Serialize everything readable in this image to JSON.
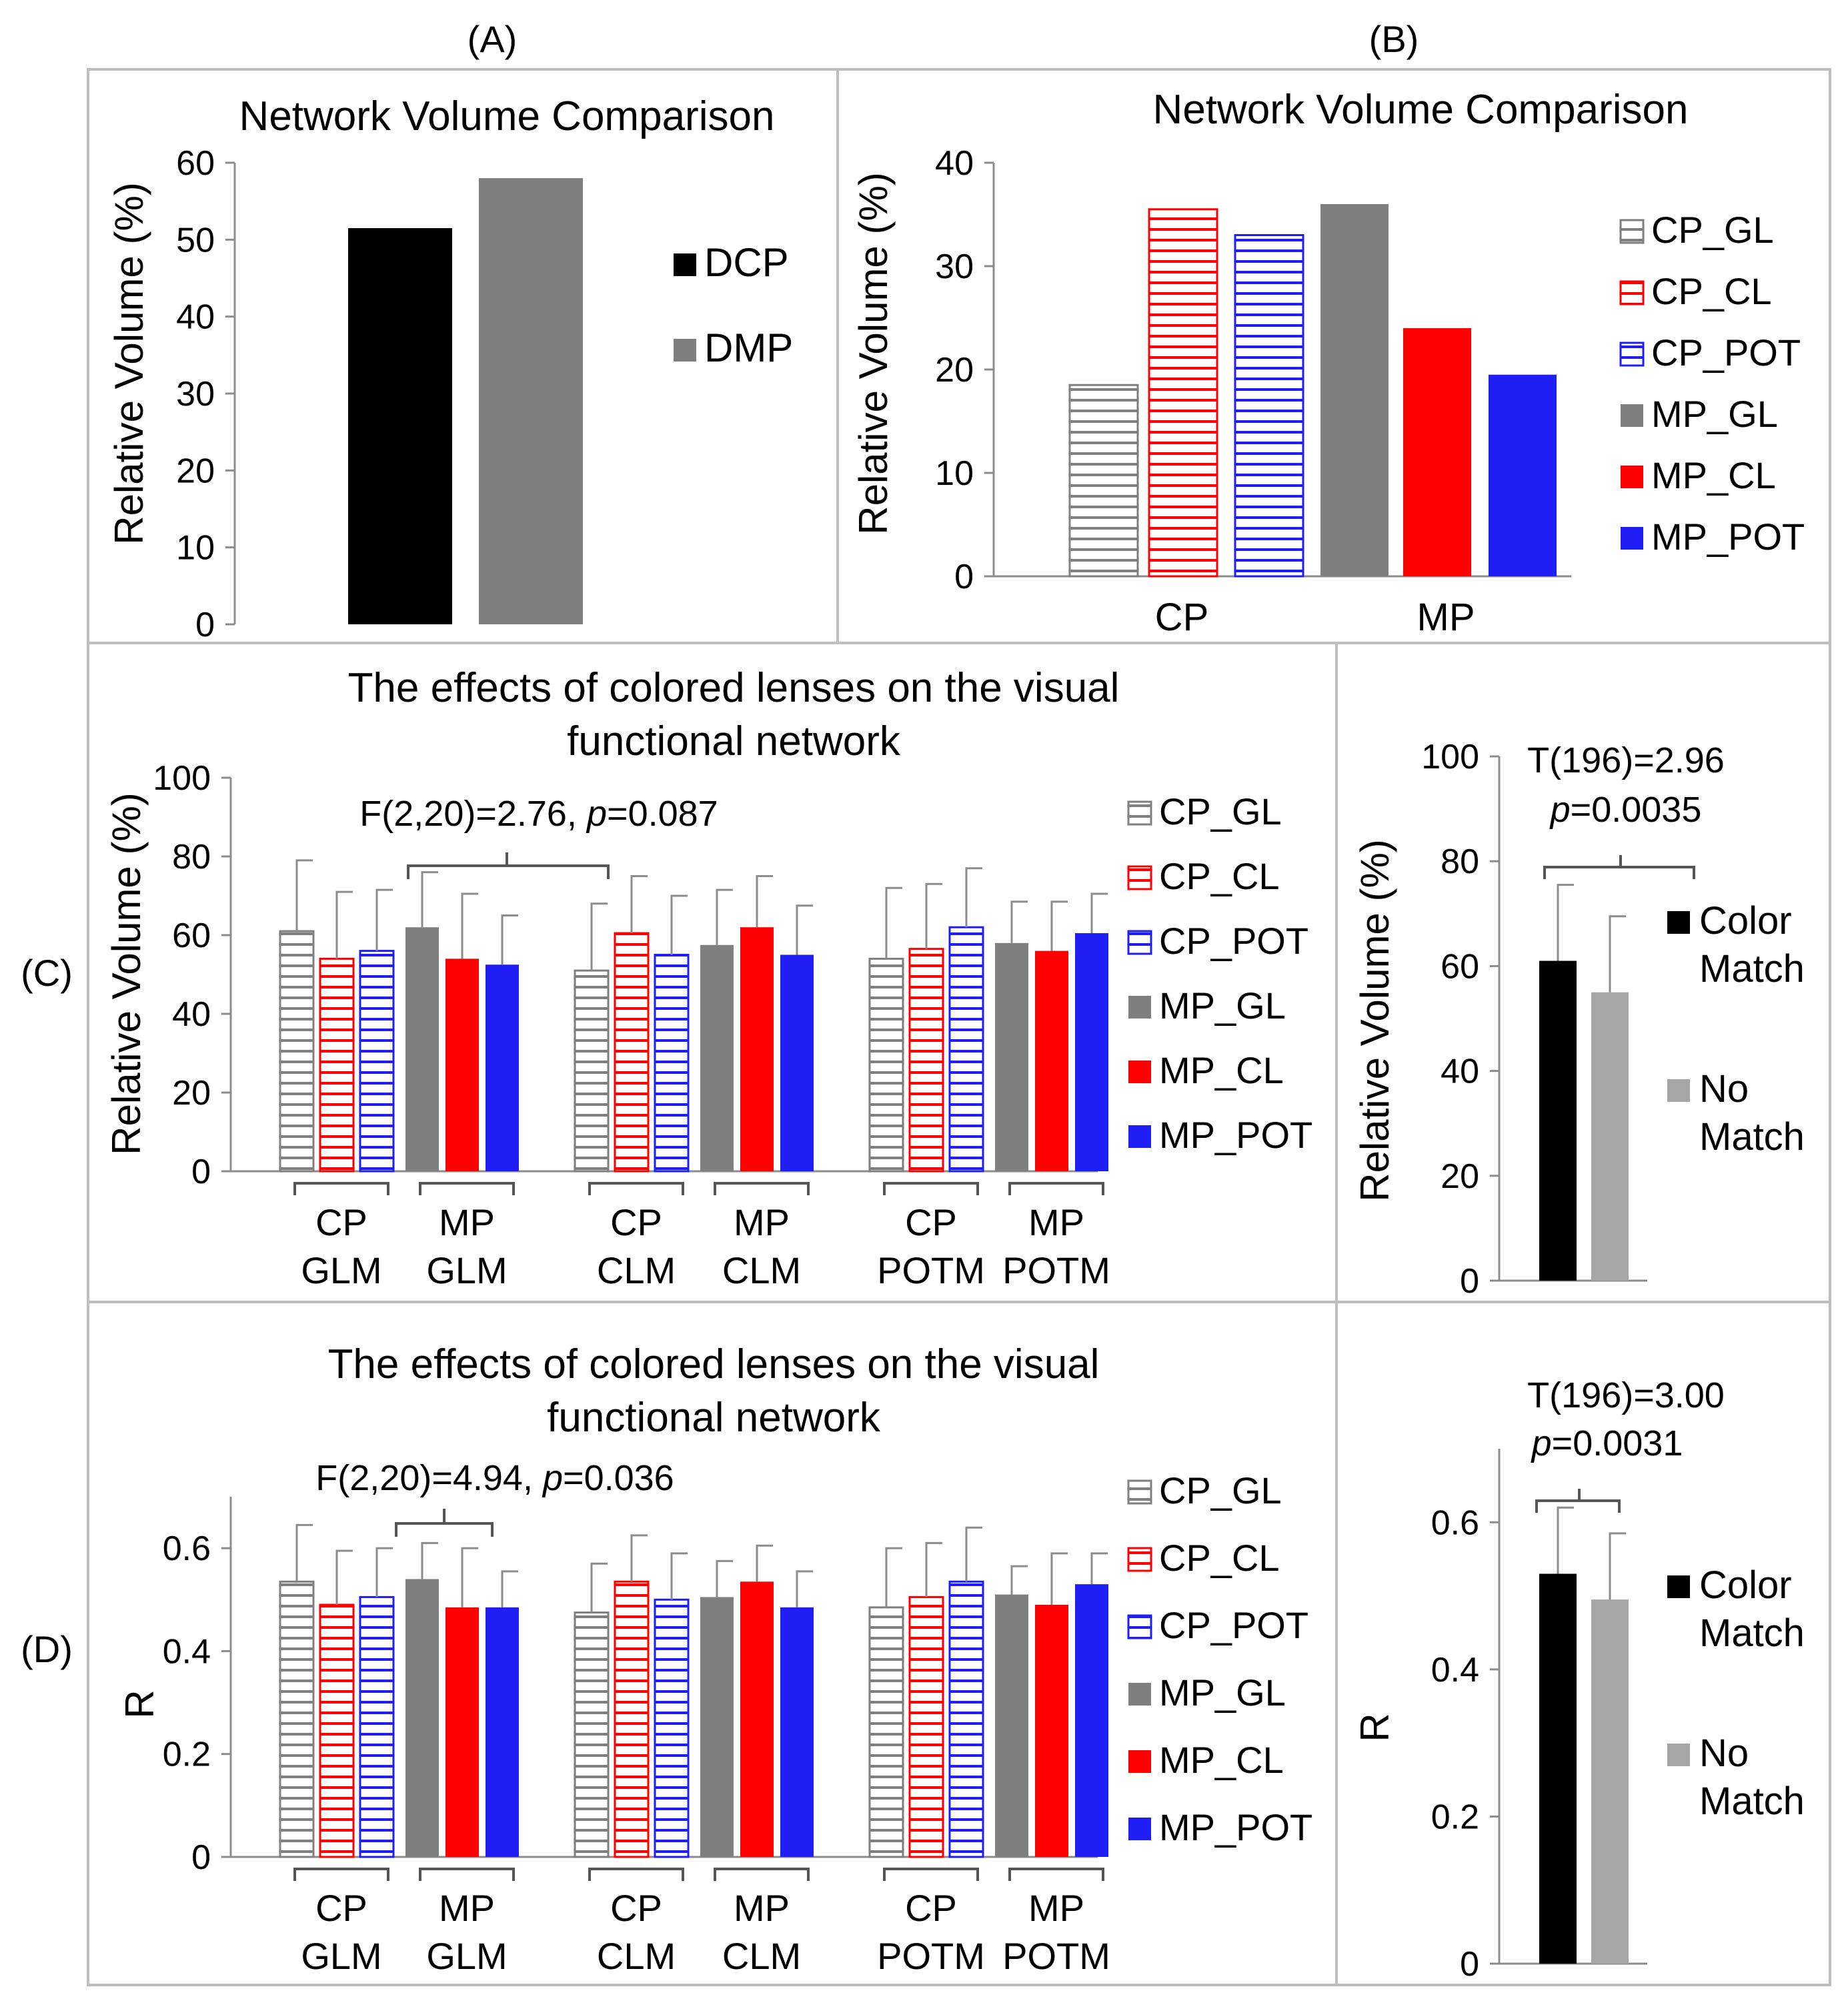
{
  "colors": {
    "black": "#000000",
    "gray": "#7f7f7f",
    "lightgray": "#a6a6a6",
    "red": "#ff0000",
    "blue": "#1f1ff5",
    "panel_border": "#bfbfbf"
  },
  "panel_labels": [
    "(A)",
    "(B)",
    "(C)",
    "(D)"
  ],
  "chart_data": [
    {
      "id": "A",
      "type": "bar",
      "title": "Network Volume Comparison",
      "ylabel": "Relative Volume (%)",
      "ylim": [
        0,
        60
      ],
      "yticks": [
        "0",
        "10",
        "20",
        "30",
        "40",
        "50",
        "60"
      ],
      "series": [
        {
          "name": "DCP",
          "value": 51.5,
          "color": "#000000",
          "pattern": "solid"
        },
        {
          "name": "DMP",
          "value": 58,
          "color": "#7f7f7f",
          "pattern": "solid"
        }
      ],
      "legend_position": "right"
    },
    {
      "id": "B",
      "type": "bar",
      "title": "Network Volume Comparison",
      "ylabel": "Relative Volume (%)",
      "ylim": [
        0,
        40
      ],
      "yticks": [
        "0",
        "10",
        "20",
        "30",
        "40"
      ],
      "categories": [
        "CP",
        "MP"
      ],
      "series": [
        {
          "name": "CP_GL",
          "category": "CP",
          "value": 18.5,
          "color": "#7f7f7f",
          "pattern": "hatch"
        },
        {
          "name": "CP_CL",
          "category": "CP",
          "value": 35.5,
          "color": "#ff0000",
          "pattern": "hatch"
        },
        {
          "name": "CP_POT",
          "category": "CP",
          "value": 33,
          "color": "#1f1ff5",
          "pattern": "hatch"
        },
        {
          "name": "MP_GL",
          "category": "MP",
          "value": 36,
          "color": "#7f7f7f",
          "pattern": "solid"
        },
        {
          "name": "MP_CL",
          "category": "MP",
          "value": 24,
          "color": "#ff0000",
          "pattern": "solid"
        },
        {
          "name": "MP_POT",
          "category": "MP",
          "value": 19.5,
          "color": "#1f1ff5",
          "pattern": "solid"
        }
      ],
      "legend_position": "right"
    },
    {
      "id": "C",
      "type": "bar",
      "title_lines": [
        "The effects of colored lenses on the visual",
        "functional network"
      ],
      "ylabel": "Relative Volume (%)",
      "ylim": [
        0,
        100
      ],
      "yticks": [
        "0",
        "20",
        "40",
        "60",
        "80",
        "100"
      ],
      "annotation": {
        "prefix": "F(2,20)=2.76,  ",
        "p_symbol": "p",
        "suffix": "=0.087"
      },
      "groups": [
        {
          "labels": [
            "CP",
            "MP"
          ],
          "sublabels": [
            "GLM",
            "GLM"
          ]
        },
        {
          "labels": [
            "CP",
            "MP"
          ],
          "sublabels": [
            "CLM",
            "CLM"
          ]
        },
        {
          "labels": [
            "CP",
            "MP"
          ],
          "sublabels": [
            "POTM",
            "POTM"
          ]
        }
      ],
      "series": [
        {
          "name": "CP_GL",
          "color": "#7f7f7f",
          "pattern": "hatch",
          "values": [
            61,
            51,
            54
          ],
          "errors": [
            18,
            17,
            18
          ]
        },
        {
          "name": "CP_CL",
          "color": "#ff0000",
          "pattern": "hatch",
          "values": [
            54,
            60.5,
            56.5
          ],
          "errors": [
            17,
            14.5,
            16.5
          ]
        },
        {
          "name": "CP_POT",
          "color": "#1f1ff5",
          "pattern": "hatch",
          "values": [
            56,
            55,
            62
          ],
          "errors": [
            15.5,
            15,
            15
          ]
        },
        {
          "name": "MP_GL",
          "color": "#7f7f7f",
          "pattern": "solid",
          "values": [
            62,
            57.5,
            58
          ],
          "errors": [
            14,
            14,
            10.5
          ]
        },
        {
          "name": "MP_CL",
          "color": "#ff0000",
          "pattern": "solid",
          "values": [
            54,
            62,
            56
          ],
          "errors": [
            16.5,
            13,
            12.5
          ]
        },
        {
          "name": "MP_POT",
          "color": "#1f1ff5",
          "pattern": "solid",
          "values": [
            52.5,
            55,
            60.5
          ],
          "errors": [
            12.5,
            12.5,
            10
          ]
        }
      ],
      "legend_position": "right"
    },
    {
      "id": "C2",
      "type": "bar",
      "ylabel": "Relative Volume (%)",
      "ylim": [
        0,
        100
      ],
      "yticks": [
        "0",
        "20",
        "40",
        "60",
        "80",
        "100"
      ],
      "annotation": {
        "line1": "T(196)=2.96",
        "p_symbol": "p",
        "line2_suffix": "=0.0035"
      },
      "series": [
        {
          "name_lines": [
            "Color",
            "Match"
          ],
          "value": 61,
          "error": 14.5,
          "color": "#000000"
        },
        {
          "name_lines": [
            "No",
            "Match"
          ],
          "value": 55,
          "error": 14.5,
          "color": "#a6a6a6"
        }
      ],
      "legend_position": "right"
    },
    {
      "id": "D",
      "type": "bar",
      "title_lines": [
        "The effects of colored lenses on the visual",
        "functional network"
      ],
      "ylabel": "R",
      "ylim": [
        0,
        0.7
      ],
      "yticks": [
        "0",
        "0.2",
        "0.4",
        "0.6"
      ],
      "annotation": {
        "prefix": "F(2,20)=4.94,  ",
        "p_symbol": "p",
        "suffix": "=0.036"
      },
      "groups": [
        {
          "labels": [
            "CP",
            "MP"
          ],
          "sublabels": [
            "GLM",
            "GLM"
          ]
        },
        {
          "labels": [
            "CP",
            "MP"
          ],
          "sublabels": [
            "CLM",
            "CLM"
          ]
        },
        {
          "labels": [
            "CP",
            "MP"
          ],
          "sublabels": [
            "POTM",
            "POTM"
          ]
        }
      ],
      "series": [
        {
          "name": "CP_GL",
          "color": "#7f7f7f",
          "pattern": "hatch",
          "values": [
            0.535,
            0.475,
            0.485
          ],
          "errors": [
            0.11,
            0.095,
            0.115
          ]
        },
        {
          "name": "CP_CL",
          "color": "#ff0000",
          "pattern": "hatch",
          "values": [
            0.49,
            0.535,
            0.505
          ],
          "errors": [
            0.105,
            0.09,
            0.105
          ]
        },
        {
          "name": "CP_POT",
          "color": "#1f1ff5",
          "pattern": "hatch",
          "values": [
            0.505,
            0.5,
            0.535
          ],
          "errors": [
            0.095,
            0.09,
            0.105
          ]
        },
        {
          "name": "MP_GL",
          "color": "#7f7f7f",
          "pattern": "solid",
          "values": [
            0.54,
            0.505,
            0.51
          ],
          "errors": [
            0.07,
            0.07,
            0.055
          ]
        },
        {
          "name": "MP_CL",
          "color": "#ff0000",
          "pattern": "solid",
          "values": [
            0.485,
            0.535,
            0.49
          ],
          "errors": [
            0.115,
            0.07,
            0.1
          ]
        },
        {
          "name": "MP_POT",
          "color": "#1f1ff5",
          "pattern": "solid",
          "values": [
            0.485,
            0.485,
            0.53
          ],
          "errors": [
            0.07,
            0.07,
            0.06
          ]
        }
      ],
      "legend_position": "right"
    },
    {
      "id": "D2",
      "type": "bar",
      "ylabel": "R",
      "ylim": [
        0,
        0.7
      ],
      "yticks": [
        "0",
        "0.2",
        "0.4",
        "0.6"
      ],
      "annotation": {
        "line1": "T(196)=3.00",
        "p_symbol": "p",
        "line2_suffix": "=0.0031"
      },
      "series": [
        {
          "name_lines": [
            "Color",
            "Match"
          ],
          "value": 0.53,
          "error": 0.09,
          "color": "#000000"
        },
        {
          "name_lines": [
            "No",
            "Match"
          ],
          "value": 0.495,
          "error": 0.09,
          "color": "#a6a6a6"
        }
      ],
      "legend_position": "right"
    }
  ]
}
